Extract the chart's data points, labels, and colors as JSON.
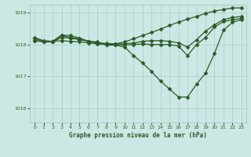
{
  "title": "Graphe pression niveau de la mer (hPa)",
  "bg_color": "#cce8e4",
  "grid_color": "#aaccc8",
  "line_color": "#2d5a27",
  "xlim": [
    -0.5,
    23.5
  ],
  "ylim": [
    1015.55,
    1019.25
  ],
  "yticks": [
    1016,
    1017,
    1018,
    1019
  ],
  "xticks": [
    0,
    1,
    2,
    3,
    4,
    5,
    6,
    7,
    8,
    9,
    10,
    11,
    12,
    13,
    14,
    15,
    16,
    17,
    18,
    19,
    20,
    21,
    22,
    23
  ],
  "series": [
    [
      1018.12,
      1018.08,
      1018.08,
      1018.22,
      1018.2,
      1018.15,
      1018.1,
      1018.08,
      1017.98,
      1017.98,
      1017.92,
      1017.65,
      1017.42,
      1017.15,
      1016.85,
      1016.6,
      1016.35,
      1016.35,
      1016.75,
      1017.1,
      1017.72,
      1018.45,
      1018.7,
      1018.78
    ],
    [
      1018.18,
      1018.1,
      1018.08,
      1018.28,
      1018.22,
      1018.18,
      1018.1,
      1018.05,
      1018.02,
      1018.0,
      1017.98,
      1018.0,
      1018.02,
      1018.0,
      1018.0,
      1018.0,
      1017.95,
      1017.65,
      1018.0,
      1018.22,
      1018.55,
      1018.72,
      1018.78,
      1018.82
    ],
    [
      1018.22,
      1018.12,
      1018.1,
      1018.3,
      1018.28,
      1018.2,
      1018.1,
      1018.05,
      1018.03,
      1018.02,
      1018.02,
      1018.05,
      1018.1,
      1018.12,
      1018.12,
      1018.1,
      1018.05,
      1017.92,
      1018.15,
      1018.42,
      1018.62,
      1018.78,
      1018.85,
      1018.88
    ],
    [
      1018.12,
      1018.1,
      1018.1,
      1018.12,
      1018.1,
      1018.08,
      1018.05,
      1018.02,
      1018.0,
      1018.02,
      1018.08,
      1018.18,
      1018.28,
      1018.38,
      1018.48,
      1018.6,
      1018.7,
      1018.8,
      1018.88,
      1018.98,
      1019.05,
      1019.1,
      1019.15,
      1019.15
    ]
  ]
}
